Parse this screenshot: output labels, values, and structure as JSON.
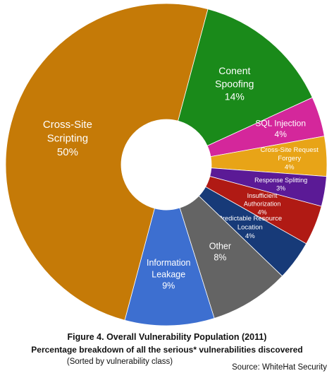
{
  "chart_data": {
    "type": "donut",
    "title": "Figure 4. Overall Vulnerability Population (2011)",
    "subtitle": "Percentage breakdown of all the serious* vulnerabilities discovered",
    "note": "(Sorted by vulnerability class)",
    "source": "Source: WhiteHat Security",
    "slices": [
      {
        "name": "Conent Spoofing",
        "lines": [
          "Conent",
          "Spoofing"
        ],
        "value": 14,
        "value_label": "14%",
        "color": "#1a8a1a"
      },
      {
        "name": "SQL Injection",
        "lines": [
          "SQL Injection"
        ],
        "value": 4,
        "value_label": "4%",
        "color": "#d4279b"
      },
      {
        "name": "Cross-Site Request Forgery",
        "lines": [
          "Cross-Site Request",
          "Forgery"
        ],
        "value": 4,
        "value_label": "4%",
        "color": "#e8a417"
      },
      {
        "name": "Response Splitting",
        "lines": [
          "Response Splitting"
        ],
        "value": 3,
        "value_label": "3%",
        "color": "#5b1a96"
      },
      {
        "name": "Insufficient Authorization",
        "lines": [
          "Insufficient",
          "Authorization"
        ],
        "value": 4,
        "value_label": "4%",
        "color": "#b01a14"
      },
      {
        "name": "Predictable Resource Location",
        "lines": [
          "Predictable Resource",
          "Location"
        ],
        "value": 4,
        "value_label": "4%",
        "color": "#173a78"
      },
      {
        "name": "Other",
        "lines": [
          "Other"
        ],
        "value": 8,
        "value_label": "8%",
        "color": "#646464"
      },
      {
        "name": "Information Leakage",
        "lines": [
          "Information",
          "Leakage"
        ],
        "value": 9,
        "value_label": "9%",
        "color": "#3d6fd0"
      },
      {
        "name": "Cross-Site Scripting",
        "lines": [
          "Cross-Site",
          "Scripting"
        ],
        "value": 50,
        "value_label": "50%",
        "color": "#c57a07"
      }
    ]
  }
}
